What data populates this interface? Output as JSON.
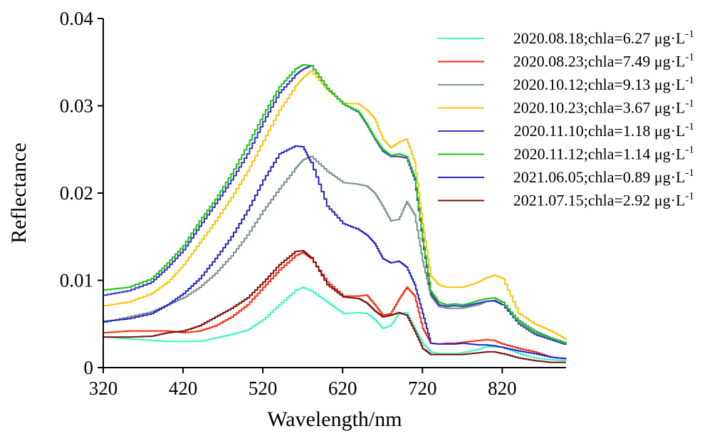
{
  "chart_data": {
    "type": "line",
    "xlabel": "Wavelength/nm",
    "ylabel": "Reflectance",
    "xlim": [
      320,
      900
    ],
    "ylim": [
      0,
      0.04
    ],
    "xticks": [
      320,
      420,
      520,
      620,
      720,
      820
    ],
    "xtick_labels": [
      "320",
      "420",
      "520",
      "620",
      "720",
      "820"
    ],
    "yticks": [
      0,
      0.01,
      0.02,
      0.03,
      0.04
    ],
    "ytick_labels": [
      "0",
      "0.01",
      "0.02",
      "0.03",
      "0.04"
    ],
    "grid": false,
    "legend_position": "top-right",
    "x": [
      320,
      350,
      380,
      400,
      420,
      440,
      460,
      480,
      500,
      520,
      540,
      560,
      570,
      580,
      600,
      620,
      640,
      650,
      660,
      670,
      680,
      690,
      700,
      710,
      720,
      730,
      740,
      750,
      760,
      770,
      780,
      790,
      800,
      810,
      820,
      840,
      860,
      880,
      900
    ],
    "series": [
      {
        "name": "2020.08.18;chla=6.27 μg·L-1",
        "label_main": "2020.08.18;chla=6.27 μg·L",
        "label_sup": "-1",
        "color": "#3ef5c2",
        "values": [
          0.0035,
          0.0033,
          0.0031,
          0.003,
          0.003,
          0.003,
          0.0034,
          0.0038,
          0.0043,
          0.0055,
          0.0072,
          0.0088,
          0.0092,
          0.0088,
          0.0075,
          0.0062,
          0.0063,
          0.0062,
          0.0055,
          0.0045,
          0.0048,
          0.0062,
          0.0063,
          0.0045,
          0.0028,
          0.0018,
          0.0016,
          0.0016,
          0.0016,
          0.0017,
          0.0019,
          0.0021,
          0.0024,
          0.0024,
          0.0023,
          0.0016,
          0.0011,
          0.0009,
          0.0008
        ]
      },
      {
        "name": "2020.08.23;chla=7.49 μg·L-1",
        "label_main": "2020.08.23;chla=7.49 μg·L",
        "label_sup": "-1",
        "color": "#ff2a0a",
        "values": [
          0.004,
          0.0042,
          0.0042,
          0.0042,
          0.004,
          0.0042,
          0.0048,
          0.0058,
          0.0072,
          0.0092,
          0.0112,
          0.0128,
          0.0132,
          0.0125,
          0.0098,
          0.0082,
          0.0082,
          0.0083,
          0.0072,
          0.006,
          0.0062,
          0.0078,
          0.0092,
          0.0082,
          0.0045,
          0.0028,
          0.0027,
          0.0028,
          0.0028,
          0.0029,
          0.003,
          0.0031,
          0.0032,
          0.0031,
          0.0027,
          0.0022,
          0.0018,
          0.0012,
          0.001
        ]
      },
      {
        "name": "2020.10.12;chla=9.13 μg·L-1",
        "label_main": "2020.10.12;chla=9.13 μg·L",
        "label_sup": "-1",
        "color": "#7a908b",
        "values": [
          0.0052,
          0.0058,
          0.0064,
          0.0072,
          0.008,
          0.0092,
          0.0108,
          0.0128,
          0.0152,
          0.018,
          0.0205,
          0.0228,
          0.0238,
          0.0242,
          0.0225,
          0.0212,
          0.021,
          0.0208,
          0.02,
          0.0185,
          0.0168,
          0.017,
          0.019,
          0.0175,
          0.0122,
          0.0082,
          0.007,
          0.0068,
          0.0068,
          0.0068,
          0.007,
          0.0072,
          0.0076,
          0.0076,
          0.0072,
          0.0054,
          0.0042,
          0.0034,
          0.0028
        ]
      },
      {
        "name": "2020.10.23;chla=3.67 μg·L-1",
        "label_main": "2020.10.23;chla=3.67 μg·L",
        "label_sup": "-1",
        "color": "#ffc20e",
        "values": [
          0.0071,
          0.0075,
          0.0085,
          0.0098,
          0.0118,
          0.0143,
          0.0168,
          0.0195,
          0.0225,
          0.026,
          0.0295,
          0.0322,
          0.0332,
          0.034,
          0.0318,
          0.0303,
          0.0302,
          0.0295,
          0.0285,
          0.0262,
          0.0252,
          0.0258,
          0.0262,
          0.0235,
          0.0165,
          0.0105,
          0.0095,
          0.0092,
          0.0092,
          0.0092,
          0.0095,
          0.0098,
          0.0103,
          0.0106,
          0.0102,
          0.0062,
          0.005,
          0.0042,
          0.0032
        ]
      },
      {
        "name": "2020.11.10;chla=1.18 μg·L-1",
        "label_main": "2020.11.10;chla=1.18 μg·L",
        "label_sup": "-1",
        "color": "#3a2fc9",
        "values": [
          0.0083,
          0.0088,
          0.0098,
          0.0115,
          0.0135,
          0.0162,
          0.0188,
          0.0215,
          0.0245,
          0.0282,
          0.0315,
          0.0335,
          0.0342,
          0.0346,
          0.032,
          0.0302,
          0.0292,
          0.0278,
          0.0262,
          0.0248,
          0.0242,
          0.0242,
          0.024,
          0.0215,
          0.0145,
          0.0085,
          0.0072,
          0.007,
          0.0071,
          0.007,
          0.0072,
          0.0074,
          0.0076,
          0.0077,
          0.0072,
          0.005,
          0.0038,
          0.0032,
          0.0026
        ]
      },
      {
        "name": "2020.11.12;chla=1.14 μg·L-1",
        "label_main": "2020.11.12;chla=1.14 μg·L",
        "label_sup": "-1",
        "color": "#19c419",
        "values": [
          0.0089,
          0.0092,
          0.0102,
          0.012,
          0.014,
          0.0168,
          0.0193,
          0.0222,
          0.0255,
          0.029,
          0.0322,
          0.0342,
          0.0347,
          0.0346,
          0.032,
          0.0302,
          0.0293,
          0.0279,
          0.0263,
          0.025,
          0.0243,
          0.0245,
          0.0242,
          0.0218,
          0.0148,
          0.0088,
          0.0075,
          0.0072,
          0.0073,
          0.0072,
          0.0074,
          0.0077,
          0.0079,
          0.008,
          0.0075,
          0.0052,
          0.004,
          0.0034,
          0.0027
        ]
      },
      {
        "name": "2021.06.05;chla=0.89 μg·L-1",
        "label_main": "2021.06.05;chla=0.89 μg·L",
        "label_sup": "-1",
        "color": "#2424c4",
        "values": [
          0.0053,
          0.0056,
          0.0062,
          0.0072,
          0.0085,
          0.0102,
          0.0125,
          0.015,
          0.018,
          0.0215,
          0.0245,
          0.0254,
          0.0253,
          0.0235,
          0.0185,
          0.0165,
          0.0158,
          0.0152,
          0.0142,
          0.0125,
          0.012,
          0.0122,
          0.0115,
          0.0095,
          0.0062,
          0.0028,
          0.0027,
          0.0027,
          0.0027,
          0.0028,
          0.0027,
          0.0026,
          0.0026,
          0.0025,
          0.0023,
          0.0019,
          0.0016,
          0.0012,
          0.001
        ]
      },
      {
        "name": "2021.07.15;chla=2.92 μg·L-1",
        "label_main": "2021.07.15;chla=2.92 μg·L",
        "label_sup": "-1",
        "color": "#7a0f0f",
        "values": [
          0.0035,
          0.0035,
          0.0036,
          0.004,
          0.0042,
          0.0048,
          0.0058,
          0.0068,
          0.008,
          0.0098,
          0.0118,
          0.0133,
          0.0134,
          0.0126,
          0.0095,
          0.0081,
          0.0079,
          0.0074,
          0.0065,
          0.0058,
          0.006,
          0.0063,
          0.006,
          0.0042,
          0.0022,
          0.0015,
          0.0015,
          0.0015,
          0.0015,
          0.0015,
          0.0016,
          0.0017,
          0.0018,
          0.0018,
          0.0016,
          0.0011,
          0.0008,
          0.0006,
          0.0006
        ]
      }
    ]
  }
}
